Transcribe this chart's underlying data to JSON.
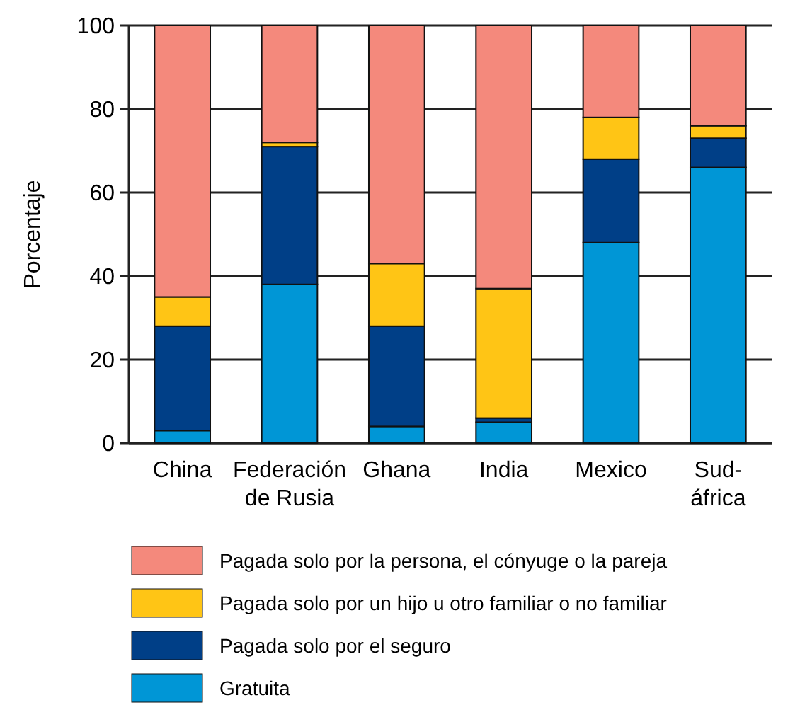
{
  "chart_data": {
    "type": "bar",
    "stacked": true,
    "ylabel": "Porcentaje",
    "categories": [
      "China",
      "Federación\nde Rusia",
      "Ghana",
      "India",
      "Mexico",
      "Sud-\náfrica"
    ],
    "ylim": [
      0,
      100
    ],
    "yticks": [
      0,
      20,
      40,
      60,
      80,
      100
    ],
    "grid": "y",
    "legend": "bottom",
    "series": [
      {
        "name": "Gratuita",
        "color": "#0096d6",
        "values": [
          3,
          38,
          4,
          5,
          48,
          66
        ]
      },
      {
        "name": "Pagada solo por el seguro",
        "color": "#003f87",
        "values": [
          25,
          33,
          24,
          1,
          20,
          7
        ]
      },
      {
        "name": "Pagada solo por un hijo u otro familiar o no familiar",
        "color": "#ffc515",
        "values": [
          7,
          1,
          15,
          31,
          10,
          3
        ]
      },
      {
        "name": "Pagada solo por la persona, el cónyuge o la pareja",
        "color": "#f4897c",
        "values": [
          65,
          28,
          57,
          63,
          22,
          24
        ]
      }
    ]
  }
}
